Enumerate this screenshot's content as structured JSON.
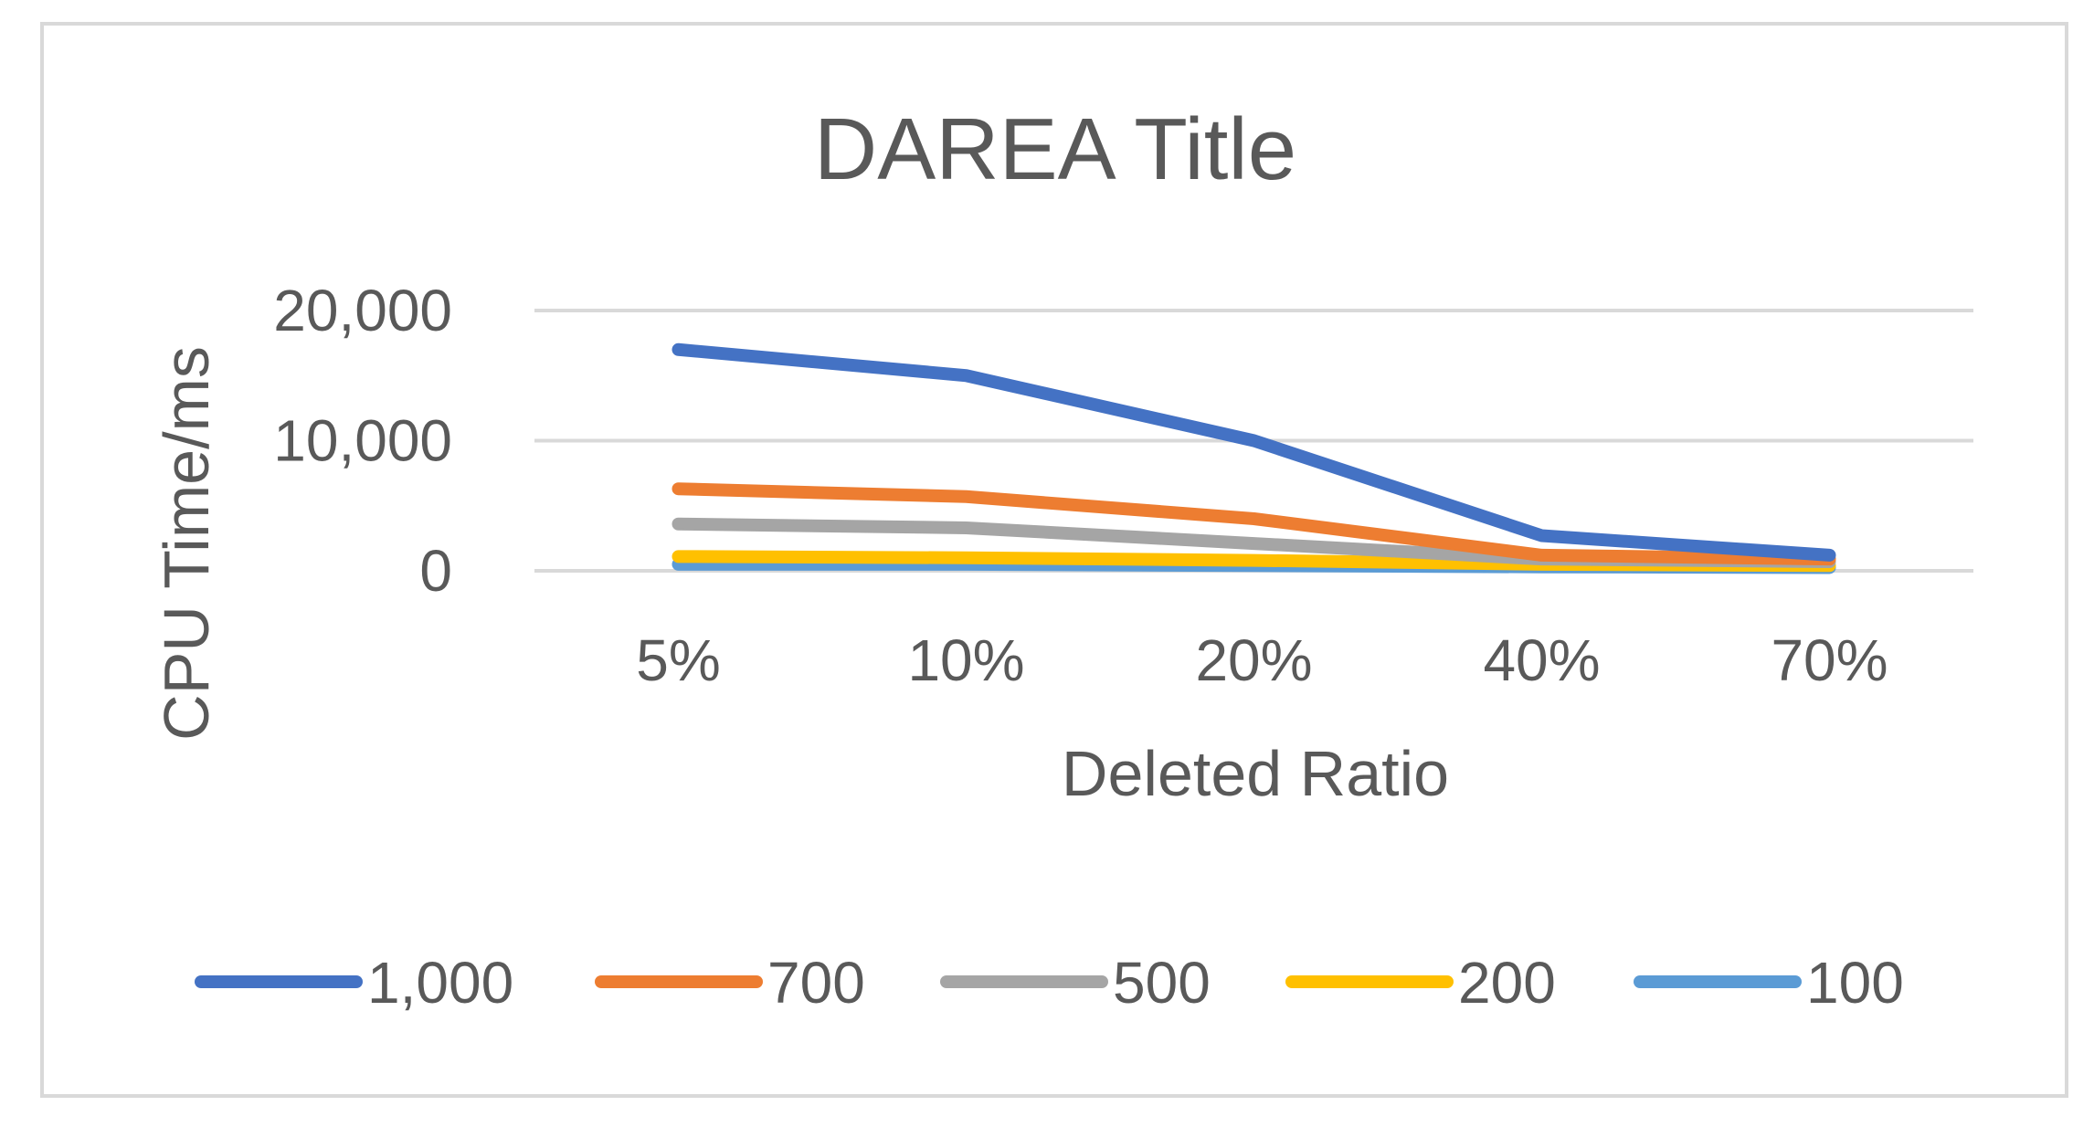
{
  "chart_data": {
    "type": "line",
    "title": "DAREA Title",
    "xlabel": "Deleted Ratio",
    "ylabel": "CPU Time/ms",
    "categories": [
      "5%",
      "10%",
      "20%",
      "40%",
      "70%"
    ],
    "ylim": [
      0,
      20000
    ],
    "yticks": [
      0,
      10000,
      20000
    ],
    "ytick_labels": [
      "0",
      "10,000",
      "20,000"
    ],
    "grid": true,
    "legend_position": "bottom",
    "series": [
      {
        "name": "1,000",
        "color": "#4472C4",
        "values": [
          17000,
          15000,
          10000,
          2700,
          1200
        ]
      },
      {
        "name": "700",
        "color": "#ED7D31",
        "values": [
          6300,
          5700,
          4000,
          1200,
          900
        ]
      },
      {
        "name": "500",
        "color": "#A5A5A5",
        "values": [
          3600,
          3300,
          2100,
          900,
          700
        ]
      },
      {
        "name": "200",
        "color": "#FFC000",
        "values": [
          1100,
          1000,
          800,
          500,
          400
        ]
      },
      {
        "name": "100",
        "color": "#5B9BD5",
        "values": [
          500,
          500,
          400,
          300,
          250
        ]
      }
    ]
  }
}
